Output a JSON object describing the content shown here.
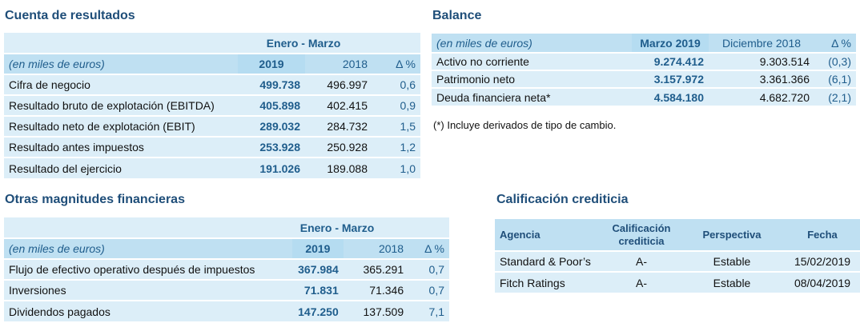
{
  "cuenta": {
    "title": "Cuenta de resultados",
    "period": "Enero - Marzo",
    "unit": "(en miles de euros)",
    "col_2019": "2019",
    "col_2018": "2018",
    "col_delta": "Δ %",
    "rows": [
      {
        "label": "Cifra de negocio",
        "v2019": "499.738",
        "v2018": "496.997",
        "delta": "0,6"
      },
      {
        "label": "Resultado bruto de explotación (EBITDA)",
        "v2019": "405.898",
        "v2018": "402.415",
        "delta": "0,9"
      },
      {
        "label": "Resultado neto de explotación (EBIT)",
        "v2019": "289.032",
        "v2018": "284.732",
        "delta": "1,5"
      },
      {
        "label": "Resultado antes impuestos",
        "v2019": "253.928",
        "v2018": "250.928",
        "delta": "1,2"
      },
      {
        "label": "Resultado del ejercicio",
        "v2019": "191.026",
        "v2018": "189.088",
        "delta": "1,0"
      }
    ]
  },
  "balance": {
    "title": "Balance",
    "unit": "(en miles de euros)",
    "col_mar": "Marzo 2019",
    "col_dic": "Diciembre 2018",
    "col_delta": "Δ %",
    "rows": [
      {
        "label": "Activo no corriente",
        "mar": "9.274.412",
        "dic": "9.303.514",
        "delta": "(0,3)"
      },
      {
        "label": "Patrimonio neto",
        "mar": "3.157.972",
        "dic": "3.361.366",
        "delta": "(6,1)"
      },
      {
        "label": "Deuda financiera neta*",
        "mar": "4.584.180",
        "dic": "4.682.720",
        "delta": "(2,1)"
      }
    ],
    "note": "(*) Incluye derivados de tipo de cambio."
  },
  "otras": {
    "title": "Otras magnitudes financieras",
    "period": "Enero - Marzo",
    "unit": "(en miles de euros)",
    "col_2019": "2019",
    "col_2018": "2018",
    "col_delta": "Δ %",
    "rows": [
      {
        "label": "Flujo de efectivo operativo después de impuestos",
        "v2019": "367.984",
        "v2018": "365.291",
        "delta": "0,7"
      },
      {
        "label": "Inversiones",
        "v2019": "71.831",
        "v2018": "71.346",
        "delta": "0,7"
      },
      {
        "label": "Dividendos pagados",
        "v2019": "147.250",
        "v2018": "137.509",
        "delta": "7,1"
      }
    ]
  },
  "calificacion": {
    "title": "Calificación crediticia",
    "headers": {
      "agencia": "Agencia",
      "calif_l1": "Calificación",
      "calif_l2": "crediticia",
      "perspectiva": "Perspectiva",
      "fecha": "Fecha"
    },
    "rows": [
      {
        "agencia": "Standard & Poor’s",
        "calif": "A-",
        "perspectiva": "Estable",
        "fecha": "15/02/2019"
      },
      {
        "agencia": "Fitch Ratings",
        "calif": "A-",
        "perspectiva": "Estable",
        "fecha": "08/04/2019"
      }
    ]
  }
}
